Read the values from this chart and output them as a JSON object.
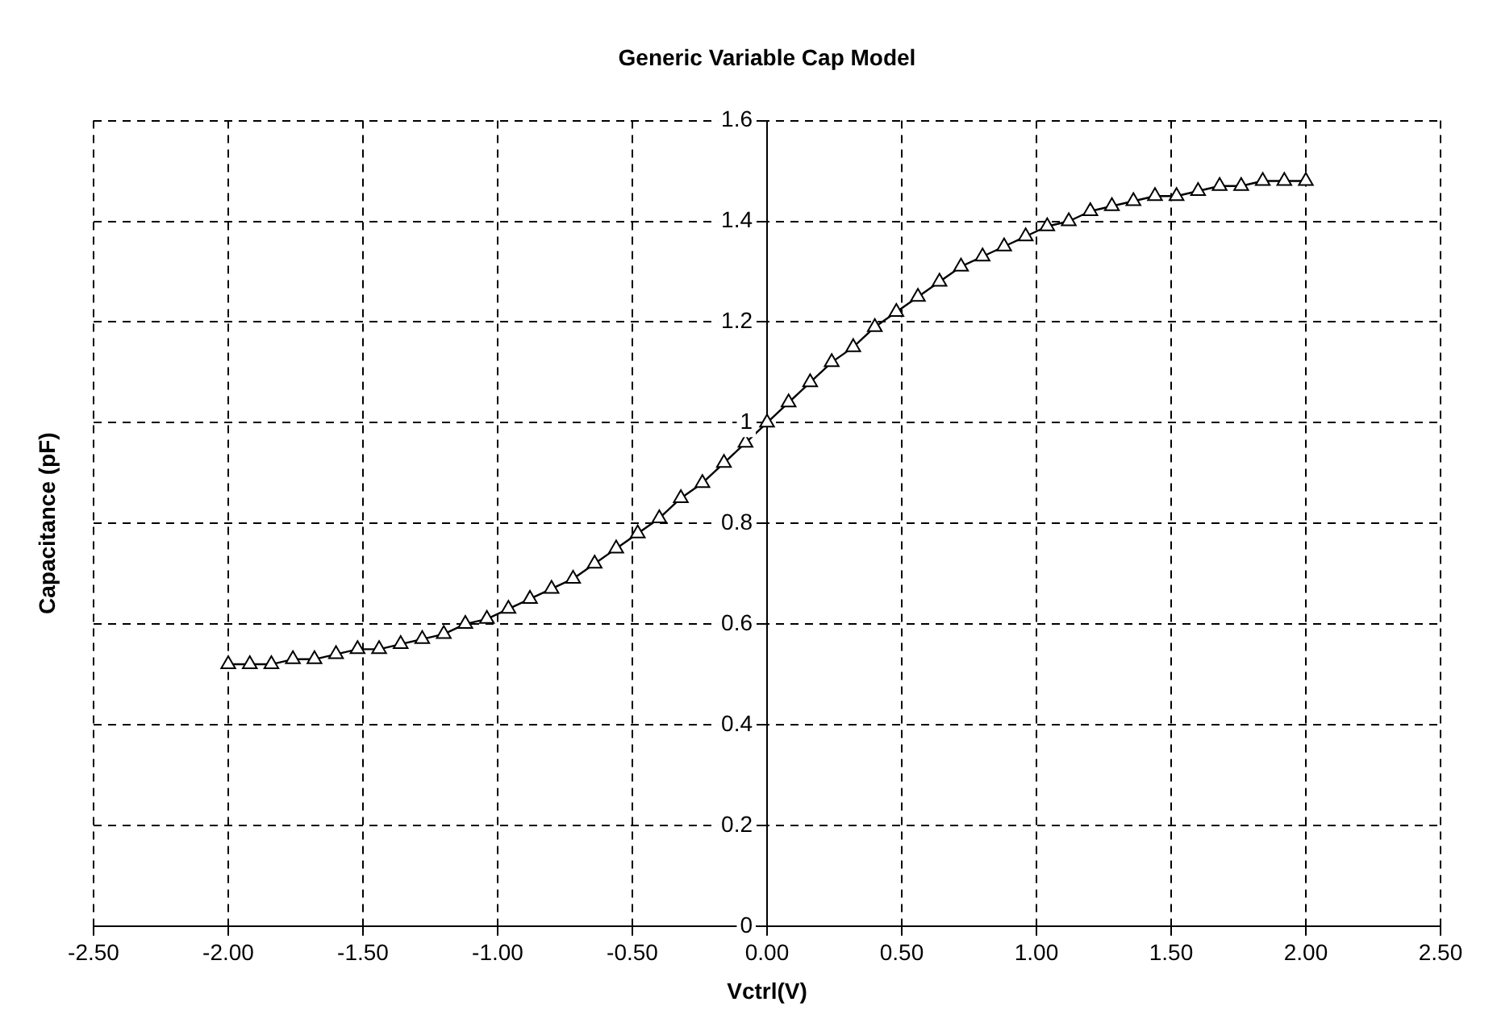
{
  "chart_data": {
    "type": "line",
    "title": "Generic Variable Cap Model",
    "xlabel": "Vctrl(V)",
    "ylabel": "Capacitance (pF)",
    "x": [
      -2,
      -1.92,
      -1.84,
      -1.76,
      -1.68,
      -1.6,
      -1.52,
      -1.44,
      -1.36,
      -1.28,
      -1.2,
      -1.12,
      -1.04,
      -0.96,
      -0.88,
      -0.8,
      -0.72,
      -0.64,
      -0.56,
      -0.48,
      -0.4,
      -0.32,
      -0.24,
      -0.16,
      -0.08,
      0,
      0.08,
      0.16,
      0.24,
      0.32,
      0.4,
      0.48,
      0.56,
      0.64,
      0.72,
      0.8,
      0.88,
      0.96,
      1.04,
      1.12,
      1.2,
      1.28,
      1.36,
      1.44,
      1.52,
      1.6,
      1.68,
      1.76,
      1.84,
      1.92,
      2
    ],
    "series": [
      {
        "color": "#000000",
        "values": [
          0.52,
          0.52,
          0.52,
          0.53,
          0.53,
          0.54,
          0.55,
          0.55,
          0.56,
          0.57,
          0.58,
          0.6,
          0.61,
          0.63,
          0.65,
          0.67,
          0.69,
          0.72,
          0.75,
          0.78,
          0.81,
          0.85,
          0.88,
          0.92,
          0.96,
          1.0,
          1.04,
          1.08,
          1.12,
          1.15,
          1.19,
          1.22,
          1.25,
          1.28,
          1.31,
          1.33,
          1.35,
          1.37,
          1.39,
          1.4,
          1.42,
          1.43,
          1.44,
          1.45,
          1.45,
          1.46,
          1.47,
          1.47,
          1.48,
          1.48,
          1.48
        ]
      }
    ],
    "xlim": [
      -2.5,
      2.5
    ],
    "xticks": [
      {
        "value": -2.5,
        "label": "-2.50"
      },
      {
        "value": -2,
        "label": "-2.00"
      },
      {
        "value": -1.5,
        "label": "-1.50"
      },
      {
        "value": -1,
        "label": "-1.00"
      },
      {
        "value": -0.5,
        "label": "-0.50"
      },
      {
        "value": 0,
        "label": "0.00"
      },
      {
        "value": 0.5,
        "label": "0.50"
      },
      {
        "value": 1,
        "label": "1.00"
      },
      {
        "value": 1.5,
        "label": "1.50"
      },
      {
        "value": 2,
        "label": "2.00"
      },
      {
        "value": 2.5,
        "label": "2.50"
      }
    ],
    "ylim": [
      0,
      1.6
    ],
    "yticks": [
      0,
      0.2,
      0.4,
      0.6,
      0.8,
      1,
      1.2,
      1.4,
      1.6
    ],
    "grid": true,
    "legend": false,
    "marker": "triangle",
    "line_style": "solid"
  }
}
